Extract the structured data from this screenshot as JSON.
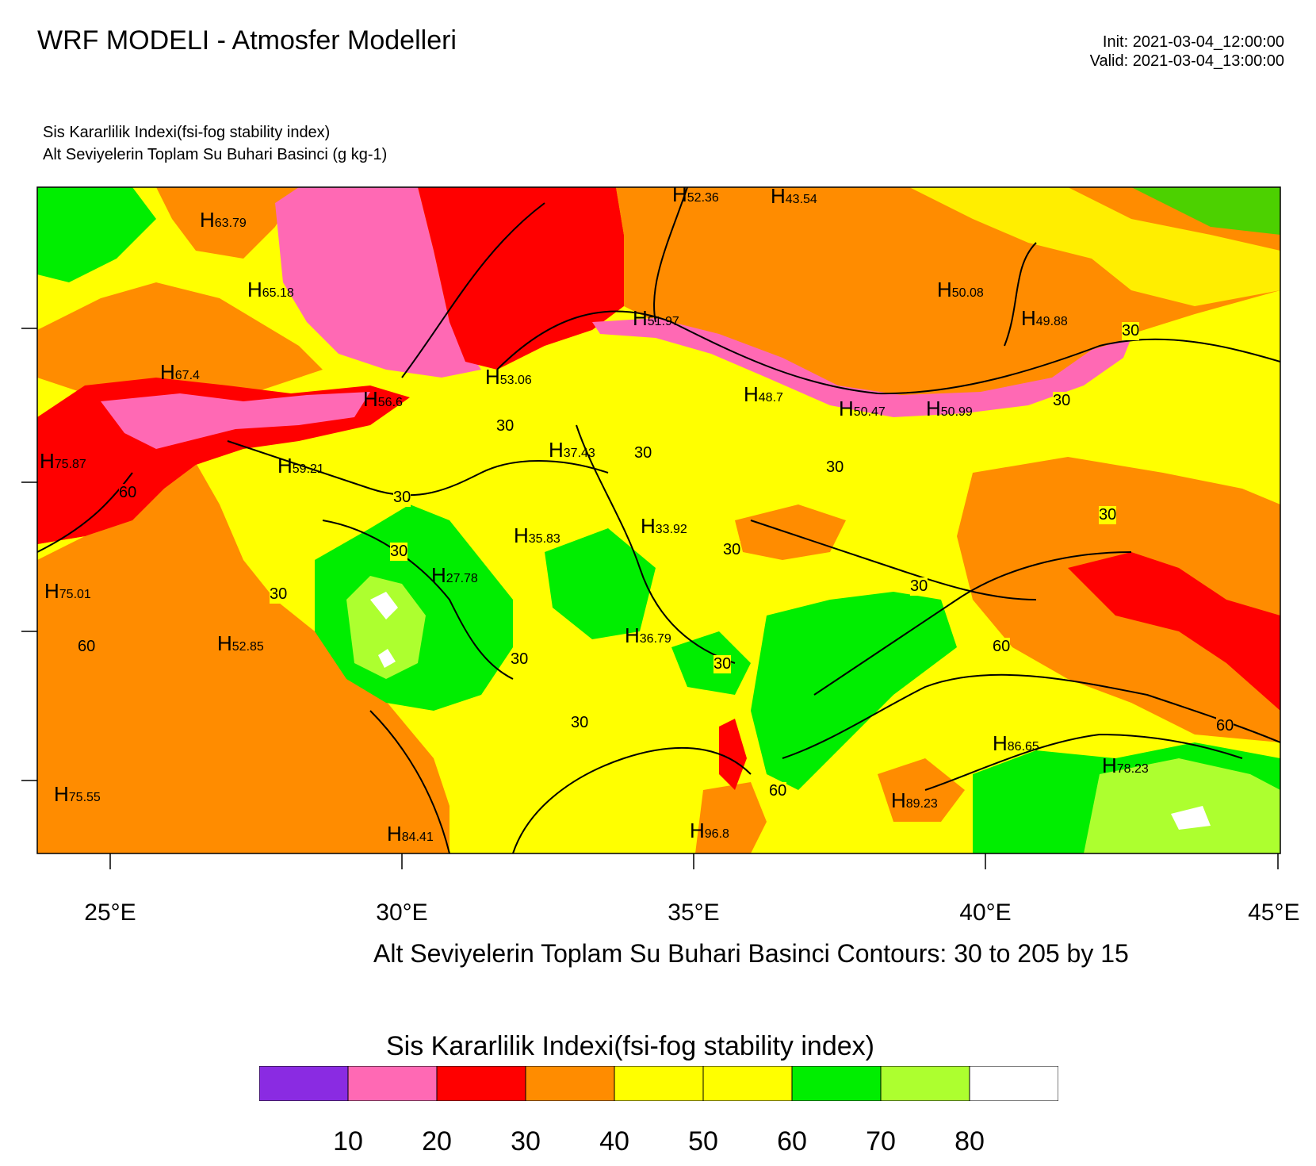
{
  "header": {
    "title": "WRF MODELI - Atmosfer Modelleri",
    "init": "Init: 2021-03-04_12:00:00",
    "valid": "Valid: 2021-03-04_13:00:00",
    "field_title": "Sis Kararlilik Indexi(fsi-fog stability index)",
    "field_subtitle": "Alt Seviyelerin Toplam Su Buhari Basinci   (g kg-1)"
  },
  "map": {
    "x_ticks": [
      "25°E",
      "30°E",
      "35°E",
      "40°E",
      "45°E"
    ],
    "highs": [
      {
        "mark": "H",
        "value": "63.79"
      },
      {
        "mark": "H",
        "value": "52.36"
      },
      {
        "mark": "H",
        "value": "43.54"
      },
      {
        "mark": "H",
        "value": "65.18"
      },
      {
        "mark": "H",
        "value": "50.08"
      },
      {
        "mark": "H",
        "value": "51.97"
      },
      {
        "mark": "H",
        "value": "49.88"
      },
      {
        "mark": "H",
        "value": "67.4"
      },
      {
        "mark": "H",
        "value": "53.06"
      },
      {
        "mark": "H",
        "value": "56.6"
      },
      {
        "mark": "H",
        "value": "48.7"
      },
      {
        "mark": "H",
        "value": "50.47"
      },
      {
        "mark": "H",
        "value": "50.99"
      },
      {
        "mark": "H",
        "value": "37.43"
      },
      {
        "mark": "H",
        "value": "75.87"
      },
      {
        "mark": "H",
        "value": "59.21"
      },
      {
        "mark": "H",
        "value": "33.92"
      },
      {
        "mark": "H",
        "value": "35.83"
      },
      {
        "mark": "H",
        "value": "27.78"
      },
      {
        "mark": "H",
        "value": "75.01"
      },
      {
        "mark": "H",
        "value": "52.85"
      },
      {
        "mark": "H",
        "value": "36.79"
      },
      {
        "mark": "H",
        "value": "86.65"
      },
      {
        "mark": "H",
        "value": "78.23"
      },
      {
        "mark": "H",
        "value": "75.55"
      },
      {
        "mark": "H",
        "value": "89.23"
      },
      {
        "mark": "H",
        "value": "84.41"
      },
      {
        "mark": "H",
        "value": "96.8"
      }
    ],
    "contour_labels": [
      "30",
      "30",
      "30",
      "30",
      "30",
      "30",
      "30",
      "30",
      "30",
      "30",
      "30",
      "30",
      "30",
      "30",
      "30",
      "30",
      "60",
      "60",
      "60",
      "60",
      "60"
    ],
    "contour_note": "Alt Seviyelerin Toplam Su Buhari Basinci Contours: 30 to 205 by 15"
  },
  "legend": {
    "title": "Sis Kararlilik Indexi(fsi-fog stability index)",
    "colors": [
      "#8a2be2",
      "#ff69b4",
      "#ff0000",
      "#ff8c00",
      "#ffff00",
      "#ffff00",
      "#00ee00",
      "#adff2f",
      "#ffffff"
    ],
    "labels": [
      "10",
      "20",
      "30",
      "40",
      "50",
      "60",
      "70",
      "80"
    ]
  }
}
